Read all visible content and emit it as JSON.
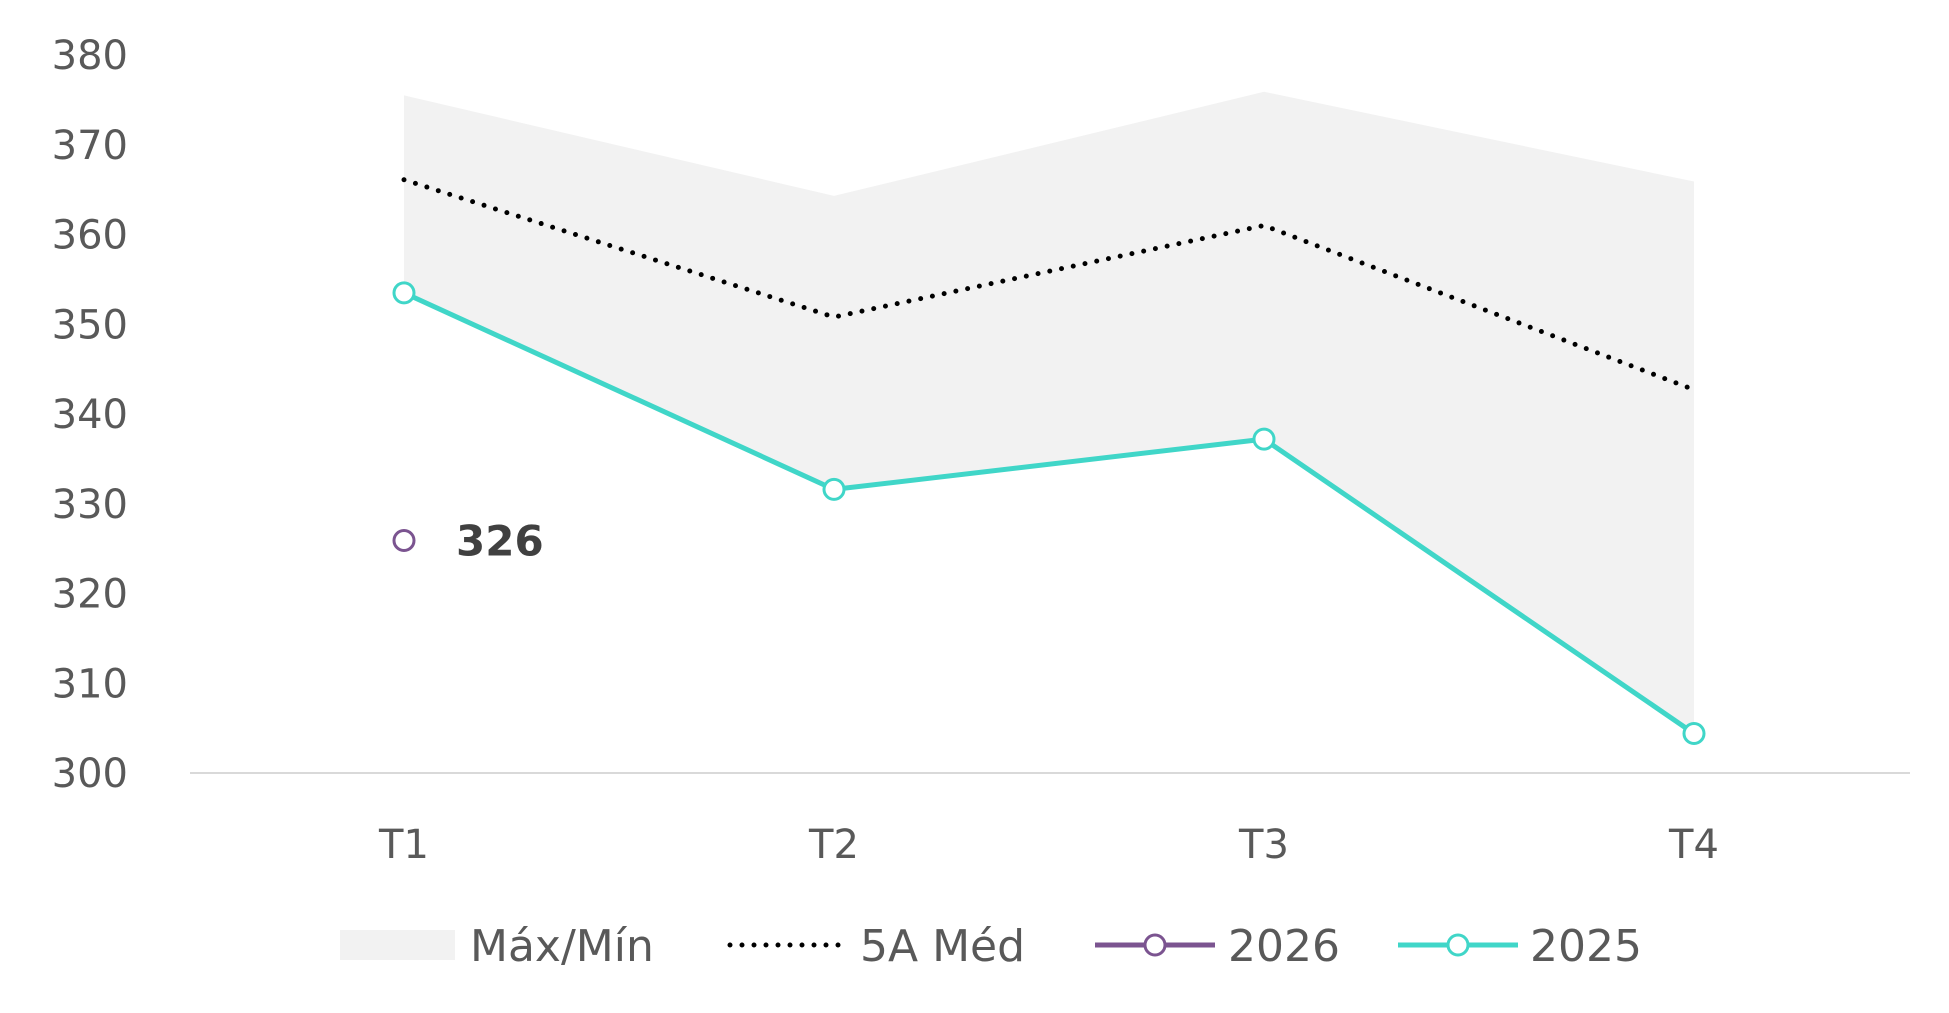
{
  "chart_data": {
    "type": "line",
    "categories": [
      "T1",
      "T2",
      "T3",
      "T4"
    ],
    "ylim": [
      300,
      380
    ],
    "yticks": [
      "380",
      "370",
      "360",
      "350",
      "340",
      "330",
      "320",
      "310",
      "300"
    ],
    "band": {
      "name": "Máx/Mín",
      "max": [
        375.5,
        364.3,
        375.9,
        365.9
      ],
      "min": [
        353.5,
        331.6,
        337.2,
        304.4
      ],
      "color": "#f2f2f2"
    },
    "series": [
      {
        "name": "5A Méd",
        "values": [
          366.1,
          350.8,
          361.0,
          342.7
        ],
        "color": "#000000",
        "style": "dotted"
      },
      {
        "name": "2026",
        "values": [
          325.9,
          null,
          null,
          null
        ],
        "color": "#7b5490",
        "style": "solid",
        "label": "326"
      },
      {
        "name": "2025",
        "values": [
          353.5,
          331.6,
          337.2,
          304.4
        ],
        "color": "#40d6c8",
        "style": "solid"
      }
    ],
    "legend": [
      "Máx/Mín",
      "5A Méd",
      "2026",
      "2025"
    ],
    "grid": false,
    "legend_position": "bottom"
  }
}
